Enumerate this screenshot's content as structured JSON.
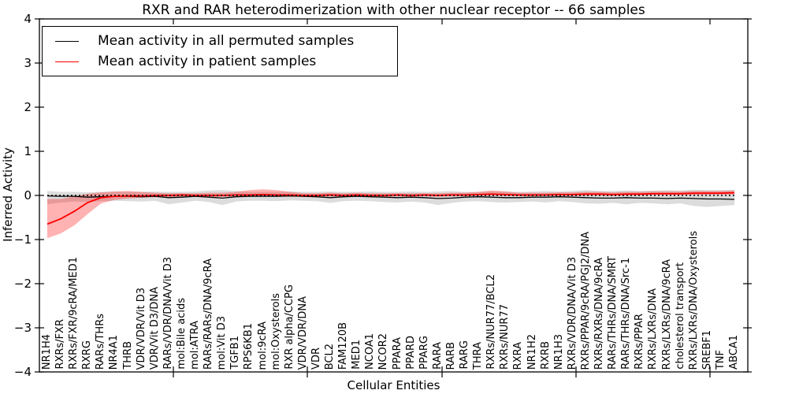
{
  "chart_data": {
    "type": "line",
    "title": "RXR and RAR heterodimerization with other nuclear receptor -- 66 samples",
    "xlabel": "Cellular Entities",
    "ylabel": "Inferred Activity",
    "ylim": [
      -4,
      4
    ],
    "grid": false,
    "legend_position": "upper left",
    "zero_line": {
      "y": 0,
      "style": "dotted",
      "color": "#000000"
    },
    "yticks": [
      {
        "value": 4,
        "label": "4"
      },
      {
        "value": 3,
        "label": "3"
      },
      {
        "value": 2,
        "label": "2"
      },
      {
        "value": 1,
        "label": "1"
      },
      {
        "value": 0,
        "label": "0"
      },
      {
        "value": -1,
        "label": "−1"
      },
      {
        "value": -2,
        "label": "−2"
      },
      {
        "value": -3,
        "label": "−3"
      },
      {
        "value": -4,
        "label": "−4"
      }
    ],
    "categories": [
      "NR1H4",
      "RXRs/FXR",
      "RXRs/FXR/9cRA/MED1",
      "RXRG",
      "RARs/THRs",
      "NR4A1",
      "THRB",
      "VDR/VDR/Vit D3",
      "VDR/Vit D3/DNA",
      "RARs/VDR/DNA/Vit D3",
      "mol:Bile acids",
      "mol:ATRA",
      "RARs/RARs/DNA/9cRA",
      "mol:Vit D3",
      "TGFB1",
      "RPS6KB1",
      "mol:9cRA",
      "mol:Oxysterols",
      "RXR alpha/CCPG",
      "VDR/VDR/DNA",
      "VDR",
      "BCL2",
      "FAM120B",
      "MED1",
      "NCOA1",
      "NCOR2",
      "PPARA",
      "PPARD",
      "PPARG",
      "RARA",
      "RARB",
      "RARG",
      "THRA",
      "RXRs/NUR77/BCL2",
      "RXRs/NUR77",
      "RXRA",
      "NR1H2",
      "RXRB",
      "NR1H3",
      "RXRs/VDR/DNA/Vit D3",
      "RXRs/PPAR/9cRA/PGJ2/DNA",
      "RXRs/RXRs/DNA/9cRA",
      "RARs/THRs/DNA/SMRT",
      "RARs/THRs/DNA/Src-1",
      "RXRs/PPAR",
      "RXRs/LXRs/DNA",
      "RXRs/LXRs/DNA/9cRA",
      "cholesterol transport",
      "RXRs/LXRs/DNA/Oxysterols",
      "SREBF1",
      "TNF",
      "ABCA1"
    ],
    "series": [
      {
        "name": "Mean activity in all permuted samples",
        "color": "#000000",
        "band_color": "#808080",
        "band_opacity": 0.28,
        "values": [
          -0.01,
          -0.02,
          -0.02,
          -0.04,
          -0.03,
          -0.02,
          -0.02,
          -0.03,
          -0.02,
          -0.05,
          -0.04,
          -0.02,
          -0.04,
          -0.06,
          -0.03,
          -0.02,
          -0.02,
          -0.02,
          -0.01,
          -0.02,
          -0.03,
          -0.05,
          -0.03,
          -0.02,
          -0.03,
          -0.04,
          -0.05,
          -0.04,
          -0.05,
          -0.07,
          -0.06,
          -0.04,
          -0.03,
          -0.04,
          -0.05,
          -0.05,
          -0.04,
          -0.04,
          -0.03,
          -0.04,
          -0.05,
          -0.06,
          -0.06,
          -0.05,
          -0.06,
          -0.06,
          -0.07,
          -0.06,
          -0.07,
          -0.08,
          -0.08,
          -0.09
        ],
        "band_hi": [
          0.1,
          0.08,
          0.08,
          0.07,
          0.08,
          0.09,
          0.08,
          0.08,
          0.09,
          0.08,
          0.08,
          0.09,
          0.11,
          0.12,
          0.1,
          0.08,
          0.08,
          0.08,
          0.09,
          0.08,
          0.08,
          0.09,
          0.08,
          0.08,
          0.09,
          0.08,
          0.08,
          0.09,
          0.08,
          0.09,
          0.1,
          0.08,
          0.08,
          0.09,
          0.09,
          0.08,
          0.09,
          0.1,
          0.09,
          0.1,
          0.12,
          0.1,
          0.1,
          0.11,
          0.1,
          0.11,
          0.12,
          0.11,
          0.13,
          0.12,
          0.12,
          0.13
        ],
        "band_lo": [
          -0.2,
          -0.16,
          -0.14,
          -0.15,
          -0.13,
          -0.12,
          -0.13,
          -0.14,
          -0.12,
          -0.2,
          -0.16,
          -0.12,
          -0.15,
          -0.22,
          -0.14,
          -0.12,
          -0.12,
          -0.13,
          -0.11,
          -0.12,
          -0.13,
          -0.17,
          -0.13,
          -0.12,
          -0.13,
          -0.15,
          -0.16,
          -0.14,
          -0.16,
          -0.22,
          -0.17,
          -0.14,
          -0.13,
          -0.15,
          -0.16,
          -0.15,
          -0.14,
          -0.16,
          -0.13,
          -0.15,
          -0.18,
          -0.19,
          -0.17,
          -0.2,
          -0.17,
          -0.18,
          -0.2,
          -0.18,
          -0.24,
          -0.26,
          -0.24,
          -0.22
        ]
      },
      {
        "name": "Mean activity in patient samples",
        "color": "#ff0000",
        "band_color": "#ff0000",
        "band_opacity": 0.3,
        "values": [
          -0.65,
          -0.53,
          -0.36,
          -0.16,
          -0.05,
          -0.02,
          -0.01,
          -0.01,
          0.0,
          0.0,
          0.01,
          0.0,
          0.0,
          0.0,
          0.01,
          0.01,
          0.02,
          0.01,
          0.01,
          0.0,
          0.0,
          0.01,
          0.0,
          0.01,
          0.0,
          0.0,
          0.01,
          0.0,
          0.01,
          0.0,
          0.01,
          0.01,
          0.02,
          0.03,
          0.02,
          0.01,
          0.01,
          0.01,
          0.02,
          0.02,
          0.03,
          0.03,
          0.02,
          0.03,
          0.03,
          0.04,
          0.04,
          0.04,
          0.05,
          0.05,
          0.05,
          0.06
        ],
        "band_hi": [
          -0.08,
          -0.08,
          -0.02,
          0.04,
          0.07,
          0.09,
          0.1,
          0.08,
          0.06,
          0.05,
          0.05,
          0.05,
          0.06,
          0.06,
          0.08,
          0.12,
          0.14,
          0.12,
          0.08,
          0.05,
          0.05,
          0.06,
          0.05,
          0.06,
          0.05,
          0.05,
          0.05,
          0.05,
          0.05,
          0.05,
          0.06,
          0.06,
          0.08,
          0.11,
          0.09,
          0.06,
          0.06,
          0.06,
          0.07,
          0.07,
          0.08,
          0.08,
          0.07,
          0.08,
          0.08,
          0.09,
          0.09,
          0.09,
          0.1,
          0.1,
          0.1,
          0.11
        ],
        "band_lo": [
          -0.97,
          -0.86,
          -0.68,
          -0.42,
          -0.18,
          -0.1,
          -0.07,
          -0.05,
          -0.04,
          -0.04,
          -0.03,
          -0.03,
          -0.04,
          -0.03,
          -0.03,
          -0.03,
          -0.02,
          -0.03,
          -0.03,
          -0.03,
          -0.03,
          -0.02,
          -0.03,
          -0.02,
          -0.03,
          -0.03,
          -0.02,
          -0.03,
          -0.02,
          -0.03,
          -0.02,
          -0.02,
          -0.01,
          0.0,
          -0.01,
          -0.02,
          -0.02,
          -0.01,
          -0.01,
          -0.01,
          0.0,
          0.0,
          -0.01,
          0.0,
          0.0,
          0.01,
          0.01,
          0.01,
          0.01,
          0.02,
          0.02,
          0.02
        ]
      }
    ]
  }
}
